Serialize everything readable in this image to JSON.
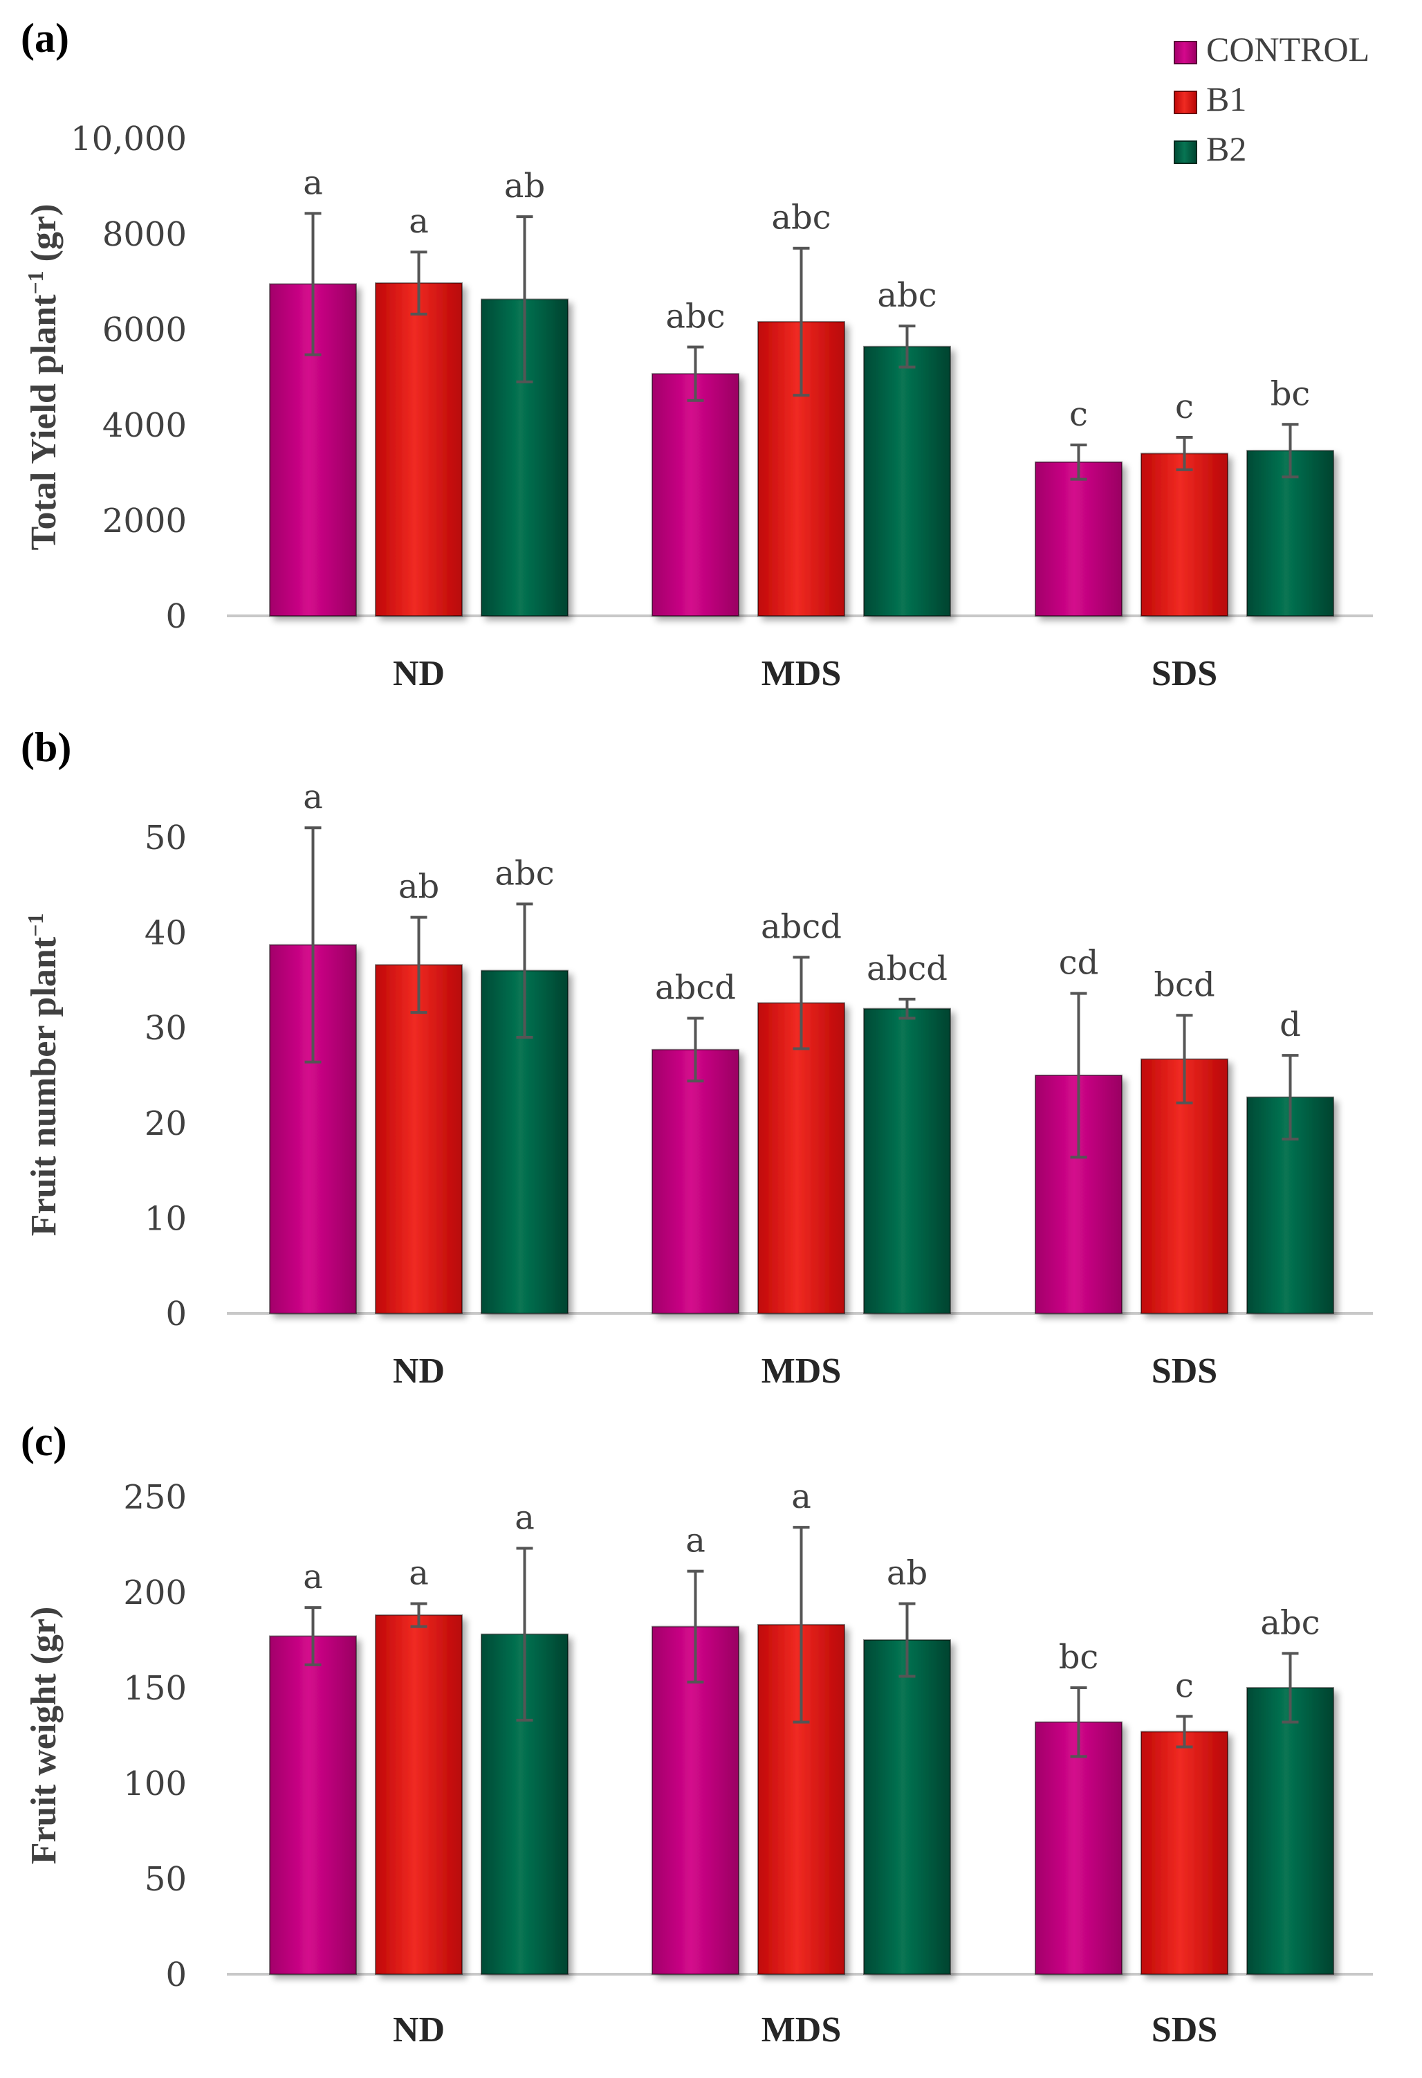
{
  "colors": {
    "CONTROL": "#c0007a",
    "B1": "#e01010",
    "B2": "#006045",
    "axis": "#c8c8c8",
    "error": "#555555"
  },
  "legend": {
    "items": [
      {
        "name": "CONTROL",
        "label": "CONTROL"
      },
      {
        "name": "B1",
        "label": "B1"
      },
      {
        "name": "B2",
        "label": "B2"
      }
    ]
  },
  "chart_data": [
    {
      "panel_label": "(a)",
      "type": "bar",
      "ylabel": "Total Yield plant",
      "ylabel_sup": "−1",
      "ylabel_suffix": " (gr)",
      "ylim": [
        0,
        10000
      ],
      "yticks": [
        0,
        2000,
        4000,
        6000,
        8000,
        10000
      ],
      "ytick_labels": [
        "0",
        "2000",
        "4000",
        "6000",
        "8000",
        "10,000"
      ],
      "categories": [
        "ND",
        "MDS",
        "SDS"
      ],
      "series": [
        {
          "name": "CONTROL",
          "values": [
            6950,
            5070,
            3220
          ],
          "errors": [
            1480,
            560,
            360
          ],
          "letters": [
            "a",
            "abc",
            "c"
          ]
        },
        {
          "name": "B1",
          "values": [
            6970,
            6160,
            3400
          ],
          "errors": [
            650,
            1540,
            340
          ],
          "letters": [
            "a",
            "abc",
            "c"
          ]
        },
        {
          "name": "B2",
          "values": [
            6630,
            5640,
            3460
          ],
          "errors": [
            1730,
            430,
            550
          ],
          "letters": [
            "ab",
            "abc",
            "bc"
          ]
        }
      ]
    },
    {
      "panel_label": "(b)",
      "type": "bar",
      "ylabel": "Fruit number plant",
      "ylabel_sup": "−1",
      "ylabel_suffix": "",
      "ylim": [
        0,
        50
      ],
      "yticks": [
        0,
        10,
        20,
        30,
        40,
        50
      ],
      "ytick_labels": [
        "0",
        "10",
        "20",
        "30",
        "40",
        "50"
      ],
      "categories": [
        "ND",
        "MDS",
        "SDS"
      ],
      "series": [
        {
          "name": "CONTROL",
          "values": [
            38.7,
            27.7,
            25.0
          ],
          "errors": [
            12.3,
            3.3,
            8.6
          ],
          "letters": [
            "a",
            "abcd",
            "cd"
          ]
        },
        {
          "name": "B1",
          "values": [
            36.6,
            32.6,
            26.7
          ],
          "errors": [
            5.0,
            4.8,
            4.6
          ],
          "letters": [
            "ab",
            "abcd",
            "bcd"
          ]
        },
        {
          "name": "B2",
          "values": [
            36.0,
            32.0,
            22.7
          ],
          "errors": [
            7.0,
            1.0,
            4.4
          ],
          "letters": [
            "abc",
            "abcd",
            "d"
          ]
        }
      ]
    },
    {
      "panel_label": "(c)",
      "type": "bar",
      "ylabel": "Fruit weight (gr)",
      "ylabel_sup": "",
      "ylabel_suffix": "",
      "ylim": [
        0,
        250
      ],
      "yticks": [
        0,
        50,
        100,
        150,
        200,
        250
      ],
      "ytick_labels": [
        "0",
        "50",
        "100",
        "150",
        "200",
        "250"
      ],
      "categories": [
        "ND",
        "MDS",
        "SDS"
      ],
      "series": [
        {
          "name": "CONTROL",
          "values": [
            177,
            182,
            132
          ],
          "errors": [
            15,
            29,
            18
          ],
          "letters": [
            "a",
            "a",
            "bc"
          ]
        },
        {
          "name": "B1",
          "values": [
            188,
            183,
            127
          ],
          "errors": [
            6,
            51,
            8
          ],
          "letters": [
            "a",
            "a",
            "c"
          ]
        },
        {
          "name": "B2",
          "values": [
            178,
            175,
            150
          ],
          "errors": [
            45,
            19,
            18
          ],
          "letters": [
            "a",
            "ab",
            "abc"
          ]
        }
      ]
    }
  ]
}
